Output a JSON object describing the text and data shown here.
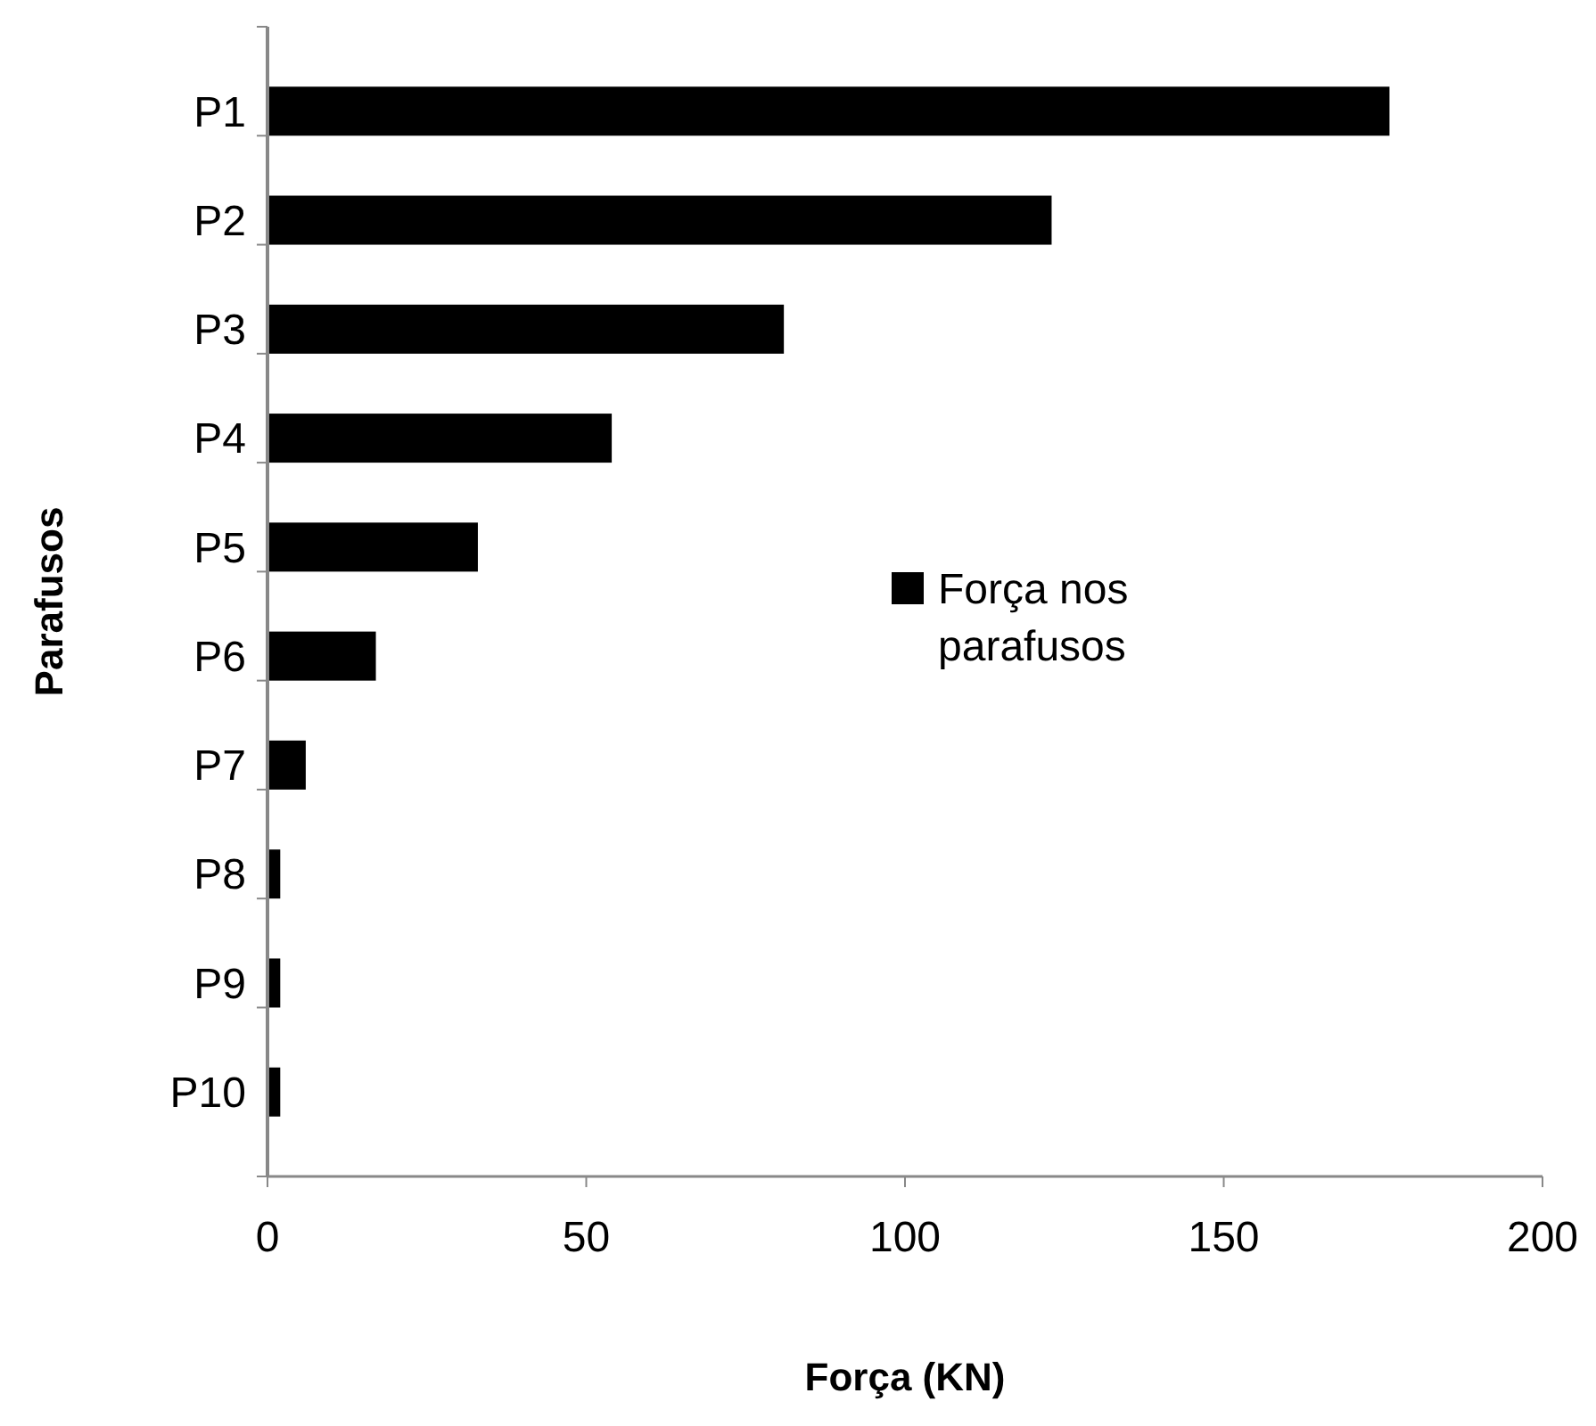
{
  "chart_data": {
    "type": "bar",
    "orientation": "horizontal",
    "xlabel": "Força (KN)",
    "ylabel": "Parafusos",
    "categories": [
      "P1",
      "P2",
      "P3",
      "P4",
      "P5",
      "P6",
      "P7",
      "P8",
      "P9",
      "P10"
    ],
    "series": [
      {
        "name": "Força nos parafusos",
        "color": "#000000",
        "values": [
          176,
          123,
          81,
          54,
          33,
          17,
          6,
          2,
          2,
          2
        ]
      }
    ],
    "xlim": [
      0,
      200
    ],
    "xticks": [
      0,
      50,
      100,
      150,
      200
    ],
    "grid": false,
    "legend": "right"
  }
}
